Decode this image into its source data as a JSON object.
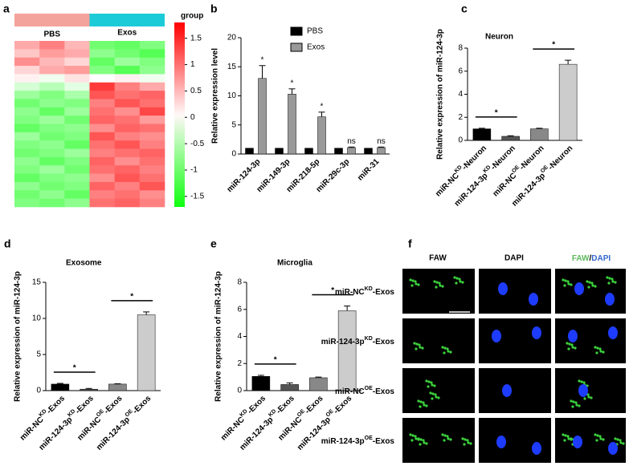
{
  "chart_data": [
    {
      "type": "heatmap",
      "label": "a",
      "groups": [
        "PBS",
        "Exos"
      ],
      "group_colors": [
        "#f4a29c",
        "#1ccbd8"
      ],
      "legend_title": "group",
      "zlim": [
        -1.7,
        1.8
      ],
      "zticks": [
        1.5,
        1,
        0.5,
        0,
        -0.5,
        -1,
        -1.5
      ],
      "values": [
        [
          0.6,
          0.9,
          0.5,
          -1.0,
          -1.1,
          -0.9
        ],
        [
          0.4,
          0.7,
          0.6,
          -0.8,
          -1.0,
          -1.2
        ],
        [
          0.8,
          0.5,
          0.3,
          -1.1,
          -0.7,
          -0.9
        ],
        [
          0.3,
          0.6,
          0.7,
          -0.9,
          -1.2,
          -0.8
        ],
        [
          0.1,
          -0.1,
          0.2,
          0.0,
          0.1,
          -0.1
        ],
        [
          -0.3,
          -0.5,
          -0.2,
          1.4,
          0.9,
          0.6
        ],
        [
          -0.7,
          -0.9,
          -0.6,
          1.2,
          1.0,
          1.1
        ],
        [
          -1.0,
          -0.8,
          -0.9,
          0.9,
          1.2,
          1.0
        ],
        [
          -0.8,
          -1.1,
          -0.7,
          1.0,
          0.8,
          1.3
        ],
        [
          -0.9,
          -0.7,
          -1.0,
          1.1,
          1.0,
          0.7
        ],
        [
          -1.1,
          -0.9,
          -0.8,
          0.8,
          1.1,
          1.0
        ],
        [
          -0.7,
          -1.0,
          -0.9,
          1.2,
          0.9,
          0.8
        ],
        [
          -0.9,
          -0.8,
          -1.1,
          1.0,
          1.2,
          0.9
        ],
        [
          -1.0,
          -0.9,
          -0.7,
          0.9,
          1.0,
          1.1
        ],
        [
          -0.8,
          -1.1,
          -0.9,
          1.1,
          0.8,
          1.0
        ],
        [
          -0.9,
          -0.7,
          -1.0,
          1.0,
          1.1,
          0.9
        ],
        [
          -1.1,
          -0.9,
          -0.8,
          0.8,
          1.2,
          1.0
        ],
        [
          -0.8,
          -1.0,
          -0.9,
          1.1,
          0.9,
          1.2
        ],
        [
          -1.0,
          -0.8,
          -1.1,
          0.9,
          1.0,
          0.8
        ],
        [
          -0.9,
          -1.0,
          -0.8,
          1.0,
          1.1,
          0.9
        ]
      ]
    },
    {
      "type": "grouped_bar",
      "label": "b",
      "ylabel": "Relative expression level",
      "categories": [
        "miR-124-3p",
        "miR-149-3p",
        "miR-218-5p",
        "miR-29c-3p",
        "miR-31"
      ],
      "series": [
        {
          "name": "PBS",
          "color": "#000000",
          "values": [
            1,
            1,
            1,
            1,
            1
          ]
        },
        {
          "name": "Exos",
          "color": "#999999",
          "values": [
            13,
            10.3,
            6.4,
            1.1,
            1.1
          ],
          "errors": [
            2.2,
            0.9,
            0.8,
            0.1,
            0.1
          ],
          "bar_labels": [
            "*",
            "*",
            "*",
            "ns",
            "ns"
          ]
        }
      ],
      "ylim": [
        0,
        20
      ],
      "yticks": [
        0,
        5,
        10,
        15,
        20
      ]
    },
    {
      "type": "bar",
      "label": "c",
      "title": "Neuron",
      "ylabel": "Relative expression of miR-124-3p",
      "categories": [
        {
          "name": "miR-NC",
          "sup": "KD",
          "suffix": "-Neuron"
        },
        {
          "name": "miR-124-3p",
          "sup": "KD",
          "suffix": "-Neuron"
        },
        {
          "name": "miR-NC",
          "sup": "OE",
          "suffix": "-Neuron"
        },
        {
          "name": "miR-124-3p",
          "sup": "OE",
          "suffix": "-Neuron"
        }
      ],
      "values": [
        1,
        0.35,
        1,
        6.6
      ],
      "errors": [
        0.05,
        0.05,
        0.05,
        0.35
      ],
      "colors": [
        "#000000",
        "#555555",
        "#888888",
        "#cccccc"
      ],
      "significance": [
        "*",
        "*"
      ],
      "ylim": [
        0,
        8
      ],
      "yticks": [
        0,
        2,
        4,
        6,
        8
      ]
    },
    {
      "type": "bar",
      "label": "d",
      "title": "Exosome",
      "ylabel": "Relative expression of miR-124-3p",
      "categories": [
        {
          "name": "miR-NC",
          "sup": "KD",
          "suffix": "-Exos"
        },
        {
          "name": "miR-124-3p",
          "sup": "KD",
          "suffix": "-Exos"
        },
        {
          "name": "miR-NC",
          "sup": "OE",
          "suffix": "-Exos"
        },
        {
          "name": "miR-124-3p",
          "sup": "OE",
          "suffix": "-Exos"
        }
      ],
      "values": [
        0.9,
        0.2,
        0.9,
        10.5
      ],
      "errors": [
        0.1,
        0.1,
        0.05,
        0.4
      ],
      "colors": [
        "#000000",
        "#555555",
        "#888888",
        "#cccccc"
      ],
      "significance": [
        "*",
        "*"
      ],
      "ylim": [
        0,
        15
      ],
      "yticks": [
        0,
        5,
        10,
        15
      ]
    },
    {
      "type": "bar",
      "label": "e",
      "title": "Microglia",
      "ylabel": "Relative expression of miR-124-3p",
      "categories": [
        {
          "name": "miR-NC",
          "sup": "KD",
          "suffix": "-Exos"
        },
        {
          "name": "miR-124-3p",
          "sup": "KD",
          "suffix": "-Exos"
        },
        {
          "name": "miR-NC",
          "sup": "OE",
          "suffix": "-Exos"
        },
        {
          "name": "miR-124-3p",
          "sup": "OE",
          "suffix": "-Exos"
        }
      ],
      "values": [
        1.05,
        0.45,
        0.95,
        5.9
      ],
      "errors": [
        0.08,
        0.12,
        0.05,
        0.35
      ],
      "colors": [
        "#000000",
        "#555555",
        "#888888",
        "#cccccc"
      ],
      "significance": [
        "*",
        "*"
      ],
      "ylim": [
        0,
        8
      ],
      "yticks": [
        0,
        2,
        4,
        6,
        8
      ]
    }
  ],
  "images": {
    "label": "f",
    "columns": [
      "FAW",
      "DAPI"
    ],
    "separator": "/",
    "column_colors": [
      "#5cb85c",
      "#3366cc"
    ],
    "rows": [
      {
        "name": "miR-NC",
        "sup": "KD",
        "suffix": "-Exos"
      },
      {
        "name": "miR-124-3p",
        "sup": "KD",
        "suffix": "-Exos"
      },
      {
        "name": "miR-NC",
        "sup": "OE",
        "suffix": "-Exos"
      },
      {
        "name": "miR-124-3p",
        "sup": "OE",
        "suffix": "-Exos"
      }
    ],
    "scale_bar": "20um"
  }
}
